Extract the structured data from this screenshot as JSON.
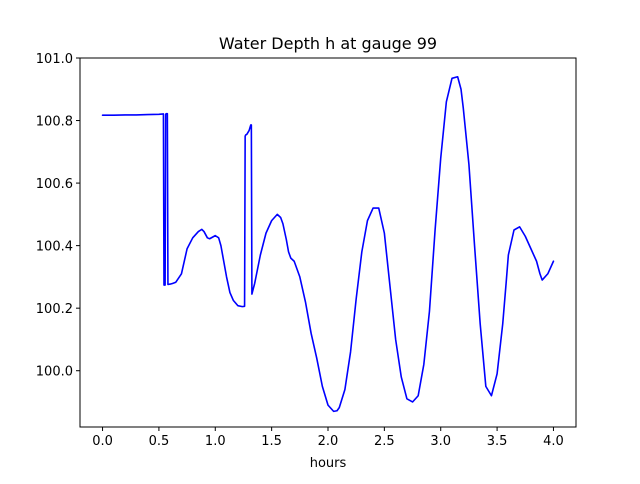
{
  "chart_data": {
    "type": "line",
    "title": "Water Depth h at gauge 99",
    "xlabel": "hours",
    "ylabel": "",
    "xlim": [
      -0.2,
      4.2
    ],
    "ylim": [
      99.82,
      101.0
    ],
    "grid": false,
    "x_ticks": [
      0.0,
      0.5,
      1.0,
      1.5,
      2.0,
      2.5,
      3.0,
      3.5,
      4.0
    ],
    "x_tick_labels": [
      "0.0",
      "0.5",
      "1.0",
      "1.5",
      "2.0",
      "2.5",
      "3.0",
      "3.5",
      "4.0"
    ],
    "y_ticks": [
      100.0,
      100.2,
      100.4,
      100.6,
      100.8,
      101.0
    ],
    "y_tick_labels": [
      "100.0",
      "100.2",
      "100.4",
      "100.6",
      "100.8",
      "101.0"
    ],
    "series": [
      {
        "color": "#0000ff",
        "x": [
          0.0,
          0.1,
          0.2,
          0.3,
          0.4,
          0.5,
          0.54,
          0.545,
          0.555,
          0.56,
          0.565,
          0.575,
          0.58,
          0.585,
          0.6,
          0.62,
          0.65,
          0.7,
          0.75,
          0.8,
          0.85,
          0.88,
          0.9,
          0.93,
          0.95,
          1.0,
          1.03,
          1.05,
          1.08,
          1.1,
          1.13,
          1.16,
          1.2,
          1.24,
          1.26,
          1.265,
          1.27,
          1.28,
          1.3,
          1.315,
          1.32,
          1.325,
          1.35,
          1.4,
          1.45,
          1.5,
          1.55,
          1.58,
          1.6,
          1.63,
          1.65,
          1.67,
          1.7,
          1.75,
          1.8,
          1.85,
          1.9,
          1.95,
          2.0,
          2.05,
          2.08,
          2.1,
          2.15,
          2.2,
          2.25,
          2.3,
          2.35,
          2.4,
          2.45,
          2.5,
          2.55,
          2.6,
          2.65,
          2.7,
          2.75,
          2.8,
          2.85,
          2.9,
          2.95,
          3.0,
          3.05,
          3.1,
          3.15,
          3.18,
          3.2,
          3.25,
          3.3,
          3.35,
          3.4,
          3.45,
          3.5,
          3.55,
          3.58,
          3.6,
          3.65,
          3.7,
          3.75,
          3.8,
          3.85,
          3.88,
          3.9,
          3.95,
          4.0
        ],
        "y": [
          100.817,
          100.817,
          100.818,
          100.818,
          100.819,
          100.82,
          100.821,
          100.274,
          100.274,
          100.82,
          100.822,
          100.822,
          100.276,
          100.276,
          100.277,
          100.279,
          100.283,
          100.31,
          100.39,
          100.425,
          100.445,
          100.452,
          100.445,
          100.425,
          100.422,
          100.432,
          100.425,
          100.4,
          100.34,
          100.3,
          100.25,
          100.225,
          100.208,
          100.205,
          100.206,
          100.75,
          100.754,
          100.756,
          100.768,
          100.786,
          100.786,
          100.245,
          100.28,
          100.37,
          100.44,
          100.48,
          100.5,
          100.49,
          100.47,
          100.42,
          100.38,
          100.36,
          100.35,
          100.3,
          100.22,
          100.12,
          100.04,
          99.95,
          99.89,
          99.87,
          99.872,
          99.882,
          99.94,
          100.06,
          100.23,
          100.38,
          100.48,
          100.52,
          100.52,
          100.44,
          100.27,
          100.1,
          99.98,
          99.91,
          99.9,
          99.92,
          100.02,
          100.19,
          100.45,
          100.68,
          100.86,
          100.935,
          100.94,
          100.9,
          100.84,
          100.66,
          100.4,
          100.15,
          99.95,
          99.92,
          99.99,
          100.15,
          100.28,
          100.37,
          100.45,
          100.46,
          100.43,
          100.39,
          100.35,
          100.31,
          100.29,
          100.31,
          100.35
        ]
      }
    ]
  }
}
